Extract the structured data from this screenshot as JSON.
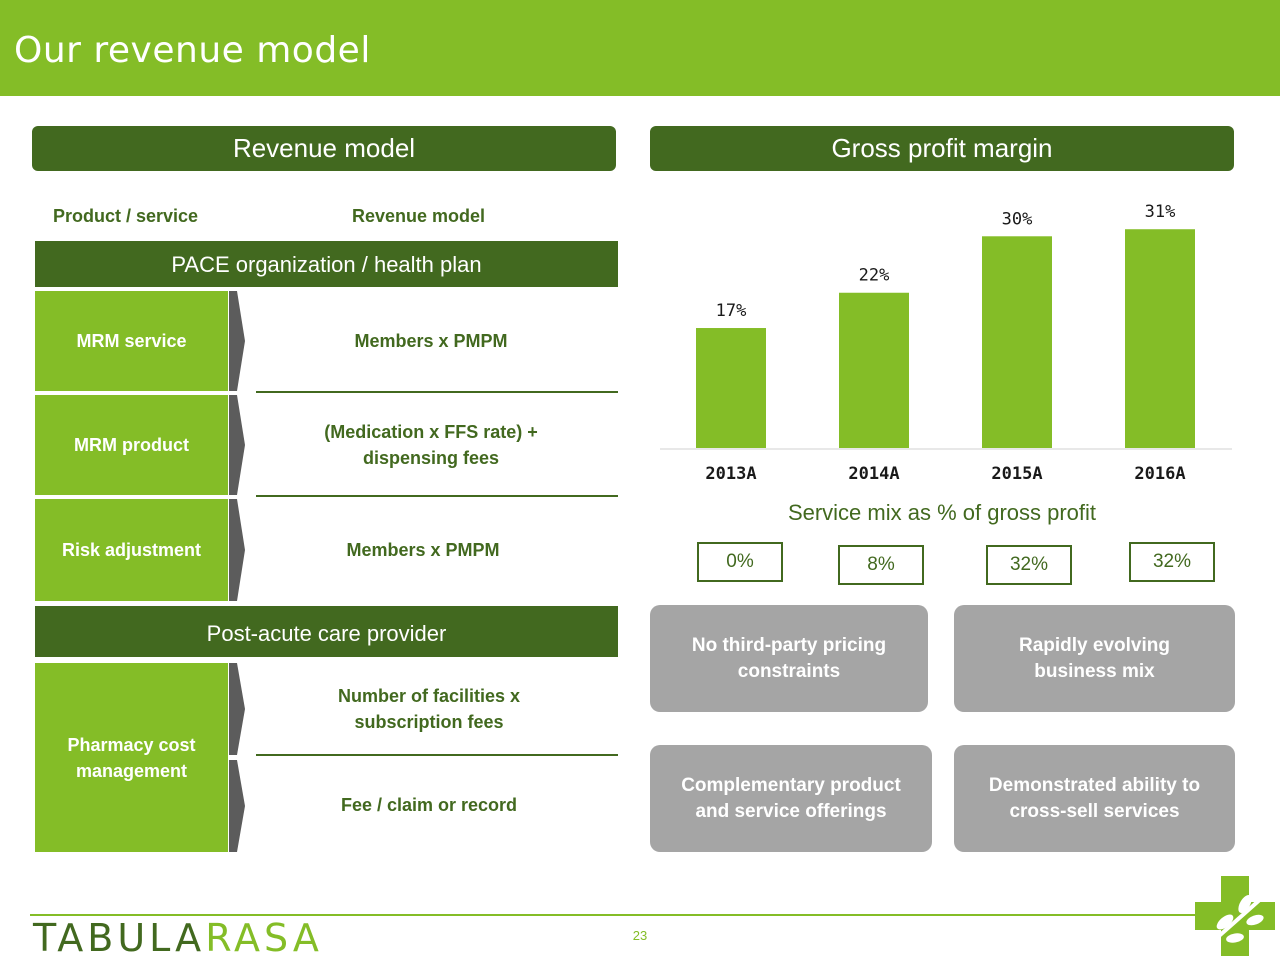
{
  "page": {
    "title": "Our revenue model",
    "page_number": "23"
  },
  "revenue_model": {
    "header": "Revenue model",
    "col_product": "Product / service",
    "col_model": "Revenue model",
    "groups": [
      {
        "name": "PACE organization / health plan",
        "rows": [
          {
            "product": "MRM service",
            "model": "Members x PMPM"
          },
          {
            "product": "MRM product",
            "model": "(Medication x FFS rate) +\ndispensing fees"
          },
          {
            "product": "Risk adjustment",
            "model": "Members x PMPM"
          }
        ]
      },
      {
        "name": "Post-acute care provider",
        "rows": [
          {
            "product": "Pharmacy cost\nmanagement",
            "model": "Number of facilities x\nsubscription fees"
          },
          {
            "product": "",
            "model": "Fee / claim or record"
          }
        ]
      }
    ]
  },
  "gross_profit": {
    "header": "Gross profit margin"
  },
  "chart_data": {
    "type": "bar",
    "categories": [
      "2013A",
      "2014A",
      "2015A",
      "2016A"
    ],
    "values": [
      17,
      22,
      30,
      31
    ],
    "value_labels": [
      "17%",
      "22%",
      "30%",
      "31%"
    ],
    "title": "",
    "xlabel": "",
    "ylabel": "",
    "ylim": [
      0,
      35
    ],
    "grid": false,
    "bar_color": "#84bd27"
  },
  "service_mix": {
    "title": "Service mix as % of gross profit",
    "values": [
      "0%",
      "8%",
      "32%",
      "32%"
    ]
  },
  "highlights": [
    "No third-party pricing\nconstraints",
    "Rapidly evolving\nbusiness mix",
    "Complementary product\nand service offerings",
    "Demonstrated ability to\ncross-sell services"
  ],
  "footer": {
    "logo_part1": "TABULA",
    "logo_part2": "RASA"
  },
  "colors": {
    "brand_green": "#84bd27",
    "dark_green": "#42691f",
    "grey": "#a5a5a5"
  }
}
